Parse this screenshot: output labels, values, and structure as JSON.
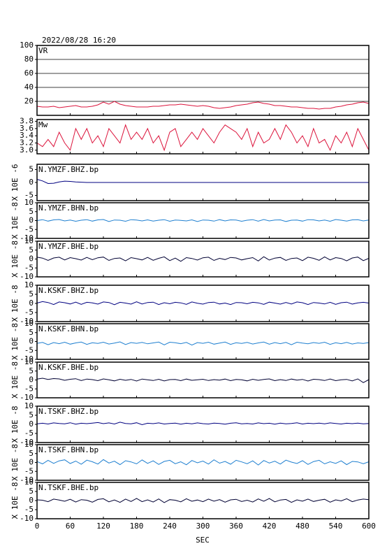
{
  "chart_data": {
    "type": "line",
    "title": "2022/08/28 16:20",
    "xlabel": "SEC",
    "xlim": [
      0,
      600
    ],
    "xticks": [
      0,
      60,
      120,
      180,
      240,
      300,
      360,
      420,
      480,
      540,
      600
    ],
    "x": [
      0,
      10,
      20,
      30,
      40,
      50,
      60,
      70,
      80,
      90,
      100,
      110,
      120,
      130,
      140,
      150,
      160,
      170,
      180,
      190,
      200,
      210,
      220,
      230,
      240,
      250,
      260,
      270,
      280,
      290,
      300,
      310,
      320,
      330,
      340,
      350,
      360,
      370,
      380,
      390,
      400,
      410,
      420,
      430,
      440,
      450,
      460,
      470,
      480,
      490,
      500,
      510,
      520,
      530,
      540,
      550,
      560,
      570,
      580,
      590,
      600
    ],
    "panels": [
      {
        "name": "VR",
        "color": "#dc143c",
        "ylim": [
          0,
          100
        ],
        "yticks": [
          20,
          40,
          60,
          80,
          100
        ],
        "grid": true,
        "values": [
          13,
          12,
          12,
          13,
          11,
          12,
          13,
          14,
          12,
          12,
          13,
          15,
          19,
          16,
          20,
          16,
          14,
          13,
          12,
          12,
          12,
          13,
          13,
          14,
          15,
          15,
          16,
          15,
          14,
          13,
          14,
          13,
          11,
          10,
          11,
          12,
          14,
          15,
          16,
          18,
          19,
          17,
          16,
          14,
          14,
          13,
          12,
          12,
          11,
          10,
          10,
          9,
          10,
          10,
          12,
          13,
          15,
          16,
          18,
          19,
          17
        ]
      },
      {
        "name": "Mw",
        "color": "#dc143c",
        "ylim": [
          2.9,
          3.85
        ],
        "yticks": [
          {
            "value": 3,
            "label": "3.0"
          },
          3.2,
          3.4,
          3.6,
          3.8
        ],
        "grid": false,
        "values": [
          3.2,
          3.1,
          3.3,
          3.1,
          3.5,
          3.2,
          3.0,
          3.6,
          3.3,
          3.6,
          3.2,
          3.4,
          3.1,
          3.6,
          3.4,
          3.2,
          3.7,
          3.3,
          3.5,
          3.3,
          3.6,
          3.2,
          3.4,
          3.0,
          3.5,
          3.6,
          3.1,
          3.3,
          3.5,
          3.3,
          3.6,
          3.4,
          3.2,
          3.5,
          3.7,
          3.6,
          3.5,
          3.3,
          3.6,
          3.1,
          3.5,
          3.2,
          3.3,
          3.6,
          3.3,
          3.7,
          3.5,
          3.2,
          3.4,
          3.1,
          3.6,
          3.2,
          3.3,
          3.0,
          3.4,
          3.2,
          3.5,
          3.1,
          3.6,
          3.3,
          3.0
        ]
      },
      {
        "name": "N.YMZF.BHZ.bp",
        "ylabel": "X 10E -6",
        "color": "#000080",
        "ylim": [
          -7,
          7
        ],
        "yticks": [
          -5,
          0,
          5
        ],
        "grid": false,
        "values": [
          1.2,
          0.6,
          -0.4,
          -0.3,
          0.2,
          0.5,
          0.4,
          0.2,
          0.1,
          0,
          0,
          0,
          0,
          0,
          0,
          0,
          0,
          0,
          0,
          0,
          0,
          0,
          0,
          0,
          0,
          0,
          0,
          0,
          0,
          0,
          0,
          0,
          0,
          0,
          0,
          0,
          0,
          0,
          0,
          0,
          0,
          0,
          0,
          0,
          0,
          0,
          0,
          0,
          0,
          0,
          0,
          0,
          0,
          0,
          0,
          0,
          0,
          0,
          0,
          0,
          0
        ]
      },
      {
        "name": "N.YMZF.BHN.bp",
        "ylabel": "X 10E -8",
        "color": "#1e7fd0",
        "ylim": [
          -10,
          10
        ],
        "yticks": [
          -10,
          -5,
          0,
          5,
          10
        ],
        "grid": false,
        "values": [
          0,
          0.5,
          -0.3,
          0.4,
          0.6,
          -0.2,
          0.3,
          -0.4,
          0.2,
          0.5,
          -0.3,
          0.4,
          0.6,
          -0.5,
          0.3,
          0.2,
          -0.4,
          0.5,
          0.3,
          -0.2,
          0.4,
          -0.3,
          0.2,
          0.5,
          -0.4,
          0.3,
          0.1,
          -0.2,
          0.4,
          -0.5,
          0.3,
          0.2,
          -0.3,
          0.5,
          -0.2,
          0.4,
          0.3,
          -0.4,
          0.2,
          0.5,
          -0.3,
          0.6,
          -0.2,
          0.3,
          0.4,
          -0.5,
          0.2,
          0.3,
          -0.3,
          0.5,
          0.4,
          -0.2,
          0.3,
          -0.4,
          0.6,
          0.2,
          -0.3,
          0.4,
          0.5,
          -0.2,
          0.3
        ]
      },
      {
        "name": "N.YMZF.BHE.bp",
        "ylabel": "X 10E -8",
        "color": "#000033",
        "ylim": [
          -10,
          10
        ],
        "yticks": [
          -10,
          -5,
          0,
          5,
          10
        ],
        "grid": false,
        "values": [
          1.0,
          0.5,
          -0.8,
          0.6,
          1.0,
          -0.5,
          0.8,
          0.2,
          -0.6,
          0.9,
          -0.4,
          0.7,
          1.1,
          -0.8,
          0.3,
          0.6,
          -1.0,
          0.8,
          0.2,
          -0.5,
          0.9,
          -0.7,
          0.4,
          1.2,
          -0.9,
          0.5,
          -1.3,
          0.8,
          0.3,
          -0.6,
          0.7,
          1.0,
          -0.8,
          0.4,
          -0.3,
          0.9,
          0.6,
          -0.5,
          0.2,
          0.8,
          -1.1,
          1.3,
          -0.6,
          0.5,
          0.9,
          -0.8,
          0.3,
          0.6,
          -0.9,
          1.0,
          0.4,
          -0.7,
          1.2,
          -0.5,
          0.8,
          0.3,
          -1.0,
          0.6,
          1.1,
          -0.9,
          0.4
        ]
      },
      {
        "name": "N.KSKF.BHZ.bp",
        "ylabel": "X 10E -8",
        "color": "#000080",
        "ylim": [
          -10,
          10
        ],
        "yticks": [
          -10,
          -5,
          0,
          5,
          10
        ],
        "grid": false,
        "values": [
          0.2,
          1.0,
          0.5,
          -0.6,
          0.8,
          0.4,
          -0.3,
          0.7,
          -0.5,
          0.6,
          0.3,
          -0.4,
          0.8,
          0.5,
          -0.7,
          0.6,
          0.2,
          -0.4,
          0.9,
          -0.3,
          0.5,
          0.7,
          -0.6,
          0.4,
          -0.2,
          0.6,
          0.3,
          -0.5,
          0.8,
          0.1,
          -0.4,
          0.5,
          0.7,
          -0.3,
          0.2,
          -0.6,
          0.5,
          0.4,
          -0.2,
          0.6,
          0.3,
          -0.5,
          0.7,
          0.2,
          -0.4,
          0.5,
          -0.3,
          0.8,
          0.4,
          -0.6,
          0.5,
          0.2,
          -0.3,
          0.6,
          -0.5,
          0.4,
          0.7,
          -0.4,
          0.3,
          0.6,
          0.2
        ]
      },
      {
        "name": "N.KSKF.BHN.bp",
        "ylabel": "X 10E -8",
        "color": "#1e7fd0",
        "ylim": [
          -10,
          10
        ],
        "yticks": [
          -10,
          -5,
          0,
          5,
          10
        ],
        "grid": false,
        "values": [
          -1.0,
          -0.5,
          -1.8,
          -0.6,
          -1.2,
          -0.4,
          -1.5,
          -0.8,
          -0.3,
          -1.6,
          -0.7,
          -1.1,
          -0.4,
          -1.4,
          -0.9,
          -0.2,
          -1.7,
          -0.6,
          -1.0,
          -0.5,
          -1.3,
          -0.8,
          -0.3,
          -1.9,
          -0.4,
          -0.7,
          -1.2,
          -0.5,
          -2.0,
          -0.6,
          -1.0,
          -0.4,
          -1.5,
          -0.9,
          -0.3,
          -1.6,
          -0.7,
          -1.1,
          -0.5,
          -1.4,
          -0.8,
          -0.3,
          -1.5,
          -0.6,
          -1.2,
          -0.5,
          -1.8,
          -0.4,
          -0.9,
          -1.3,
          -0.6,
          -1.0,
          -0.4,
          -1.6,
          -0.7,
          -1.2,
          -0.5,
          -1.4,
          -0.8,
          -1.1,
          -0.6
        ]
      },
      {
        "name": "N.KSKF.BHE.bp",
        "ylabel": "X 10E -8",
        "color": "#000033",
        "ylim": [
          -10,
          10
        ],
        "yticks": [
          -10,
          -5,
          0,
          5,
          10
        ],
        "grid": false,
        "values": [
          0.5,
          1.0,
          0.3,
          0.8,
          0.6,
          -0.2,
          0.4,
          0.7,
          -0.3,
          0.5,
          0.2,
          -0.4,
          0.6,
          0.1,
          -0.5,
          0.4,
          -0.2,
          0.3,
          -0.6,
          0.5,
          0.1,
          -0.3,
          0.4,
          -0.5,
          0.2,
          0.3,
          -0.4,
          0.5,
          -0.2,
          0.1,
          0.4,
          -0.3,
          0.2,
          -0.1,
          0.5,
          -0.4,
          0.3,
          0.1,
          -0.5,
          0.4,
          -0.2,
          0.3,
          0.6,
          -0.4,
          0.2,
          -0.3,
          0.5,
          -0.1,
          0.3,
          -0.6,
          0.4,
          0.2,
          -0.3,
          0.5,
          -0.4,
          0.1,
          0.3,
          -0.5,
          0.6,
          -1.5,
          0.2
        ]
      },
      {
        "name": "N.TSKF.BHZ.bp",
        "ylabel": "X 10E -8",
        "color": "#000080",
        "ylim": [
          -10,
          10
        ],
        "yticks": [
          -10,
          -5,
          0,
          5,
          10
        ],
        "grid": false,
        "values": [
          0.3,
          0.6,
          0.2,
          0.8,
          0.5,
          0.3,
          0.9,
          0.1,
          0.6,
          0.4,
          0.7,
          1.0,
          0.4,
          0.8,
          0.2,
          1.2,
          0.5,
          0.3,
          0.9,
          -0.2,
          0.6,
          0.4,
          0.8,
          0.2,
          0.5,
          0.7,
          0.1,
          0.6,
          0.3,
          0.8,
          0.4,
          0.2,
          0.7,
          0.5,
          0.1,
          0.6,
          0.9,
          0.3,
          0.5,
          0.2,
          0.8,
          0.4,
          0.6,
          0.1,
          0.7,
          0.3,
          0.5,
          0.9,
          0.2,
          0.6,
          0.4,
          0.7,
          0.3,
          0.8,
          0.5,
          0.2,
          0.6,
          0.4,
          0.7,
          0.3,
          0.5
        ]
      },
      {
        "name": "N.TSKF.BHN.bp",
        "ylabel": "X 10E -8",
        "color": "#1e7fd0",
        "ylim": [
          -10,
          10
        ],
        "yticks": [
          -10,
          -5,
          0,
          5,
          10
        ],
        "grid": false,
        "values": [
          0.5,
          -0.8,
          1.2,
          -0.5,
          0.9,
          1.5,
          -0.6,
          0.8,
          -1.0,
          1.3,
          0.4,
          -0.9,
          1.6,
          -0.3,
          0.7,
          -1.2,
          1.0,
          0.3,
          -0.8,
          1.4,
          -0.5,
          0.9,
          -1.1,
          0.6,
          1.2,
          -0.7,
          0.4,
          -1.3,
          1.1,
          -0.2,
          0.8,
          -0.9,
          1.5,
          -0.4,
          0.6,
          -1.0,
          1.2,
          0.3,
          -0.7,
          0.9,
          -1.4,
          1.1,
          -0.3,
          0.7,
          -0.9,
          1.3,
          0.2,
          -0.6,
          1.0,
          -1.1,
          0.5,
          1.2,
          -0.8,
          0.4,
          -0.5,
          0.9,
          -1.2,
          0.6,
          0.3,
          -0.7,
          0.4
        ]
      },
      {
        "name": "N.TSKF.BHE.bp",
        "ylabel": "X 10E -8",
        "color": "#000033",
        "ylim": [
          -10,
          10
        ],
        "yticks": [
          -10,
          -5,
          0,
          5,
          10
        ],
        "grid": false,
        "values": [
          0.4,
          0.2,
          -0.6,
          0.8,
          0.3,
          -0.4,
          0.7,
          -0.8,
          0.5,
          0.2,
          -0.9,
          0.6,
          1.0,
          -0.7,
          0.3,
          -1.0,
          0.8,
          -0.5,
          1.2,
          -0.6,
          0.4,
          -0.8,
          0.9,
          -1.1,
          0.5,
          0.2,
          -0.7,
          1.0,
          -0.4,
          0.3,
          -0.6,
          0.8,
          -0.3,
          0.5,
          -0.9,
          0.4,
          0.7,
          -0.5,
          0.2,
          -0.8,
          0.9,
          -0.4,
          1.1,
          -0.7,
          0.3,
          0.6,
          -1.0,
          0.4,
          -0.3,
          0.8,
          -0.5,
          0.2,
          0.7,
          -0.9,
          0.4,
          -0.2,
          1.0,
          -0.6,
          0.3,
          0.8,
          0.5
        ]
      }
    ]
  }
}
